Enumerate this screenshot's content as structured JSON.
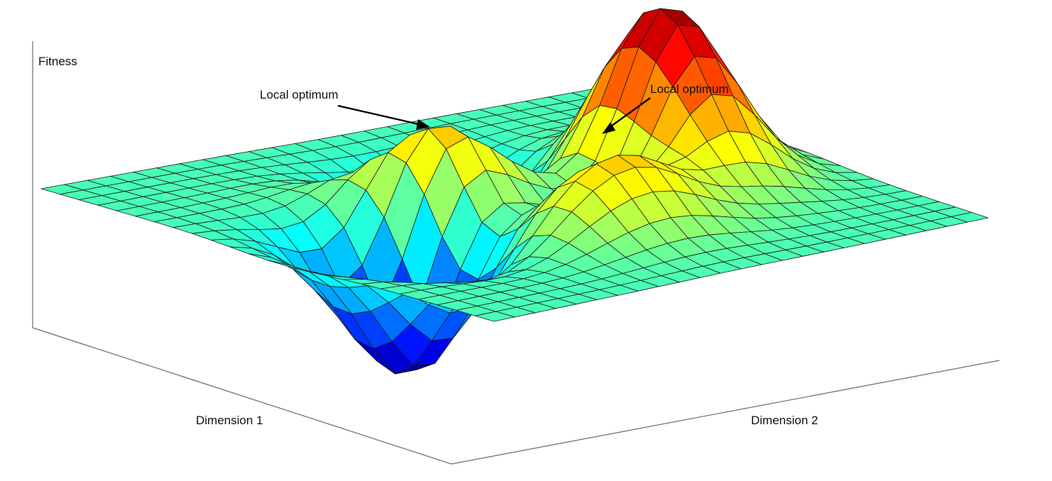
{
  "chart_data": {
    "type": "surface",
    "title": "",
    "zlabel": "Fitness",
    "xlabel": "Dimension 1",
    "ylabel": "Dimension 2",
    "annotations": [
      {
        "id": "local-left",
        "text": "Local optimum"
      },
      {
        "id": "local-right",
        "text": "Local optimum"
      }
    ],
    "grid": false,
    "colormap": "jet",
    "xlim": [
      -3,
      3
    ],
    "ylim": [
      -3,
      3
    ],
    "zlim": [
      -6.5,
      8.1
    ],
    "surface_function": "peaks",
    "x": [
      -3,
      -2.75,
      -2.5,
      -2.25,
      -2,
      -1.75,
      -1.5,
      -1.25,
      -1,
      -0.75,
      -0.5,
      -0.25,
      0,
      0.25,
      0.5,
      0.75,
      1,
      1.25,
      1.5,
      1.75,
      2,
      2.25,
      2.5,
      2.75,
      3
    ],
    "y": [
      -3,
      -2.75,
      -2.5,
      -2.25,
      -2,
      -1.75,
      -1.5,
      -1.25,
      -1,
      -0.75,
      -0.5,
      -0.25,
      0,
      0.25,
      0.5,
      0.75,
      1,
      1.25,
      1.5,
      1.75,
      2,
      2.25,
      2.5,
      2.75,
      3
    ],
    "colors": {
      "low": "#1f2fd6",
      "mid_low": "#5ef2f2",
      "mid": "#9ef04a",
      "mid_high": "#f7f21e",
      "high": "#c0100d"
    }
  }
}
